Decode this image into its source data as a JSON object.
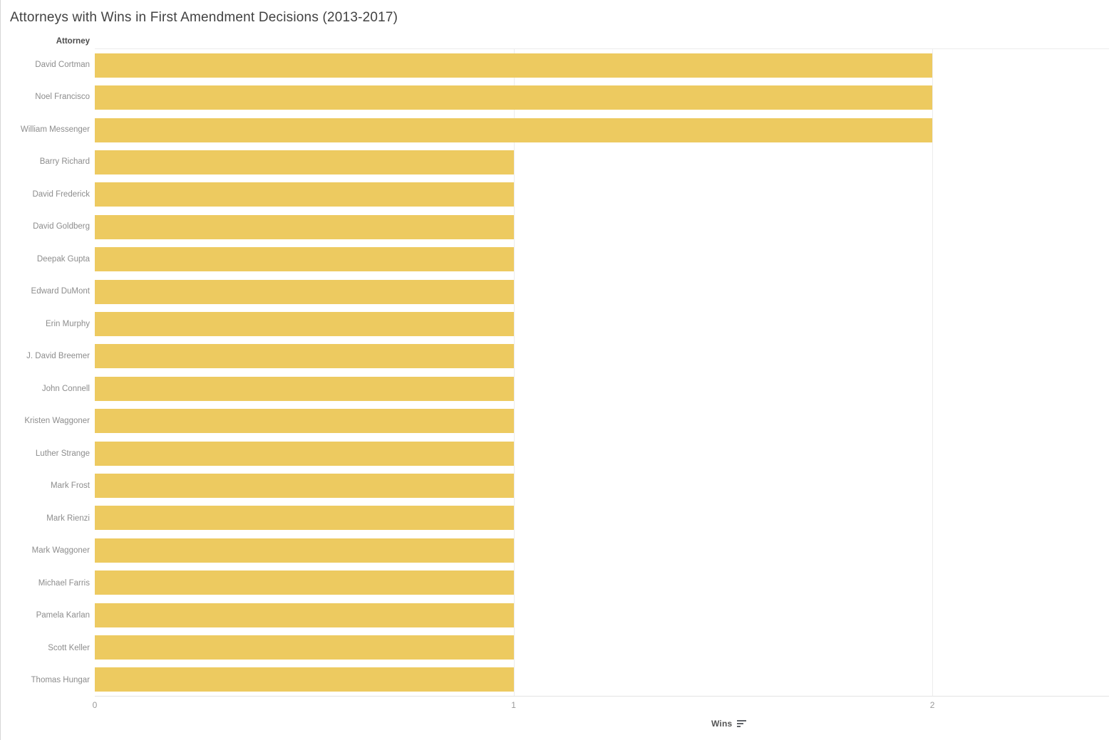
{
  "title": "Attorneys with Wins in First Amendment Decisions (2013-2017)",
  "row_header": "Attorney",
  "axis": {
    "title": "Wins",
    "ticks": [
      "0",
      "1",
      "2"
    ],
    "sort_icon": "sort-descending-icon"
  },
  "colors": {
    "bar": "#EDCA60",
    "gridline": "#ececec",
    "axis_line": "#e4e4e4",
    "label_text": "#8d8d8d",
    "title_text": "#424242"
  },
  "chart_data": {
    "type": "bar",
    "orientation": "horizontal",
    "title": "Attorneys with Wins in First Amendment Decisions (2013-2017)",
    "xlabel": "Wins",
    "ylabel": "Attorney",
    "xlim": [
      0,
      2.42
    ],
    "grid": true,
    "sort": "descending by wins",
    "categories": [
      "David Cortman",
      "Noel Francisco",
      "William Messenger",
      "Barry Richard",
      "David Frederick",
      "David Goldberg",
      "Deepak Gupta",
      "Edward DuMont",
      "Erin Murphy",
      "J. David Breemer",
      "John Connell",
      "Kristen Waggoner",
      "Luther Strange",
      "Mark Frost",
      "Mark Rienzi",
      "Mark Waggoner",
      "Michael Farris",
      "Pamela Karlan",
      "Scott Keller",
      "Thomas Hungar"
    ],
    "values": [
      2,
      2,
      2,
      1,
      1,
      1,
      1,
      1,
      1,
      1,
      1,
      1,
      1,
      1,
      1,
      1,
      1,
      1,
      1,
      1
    ]
  }
}
